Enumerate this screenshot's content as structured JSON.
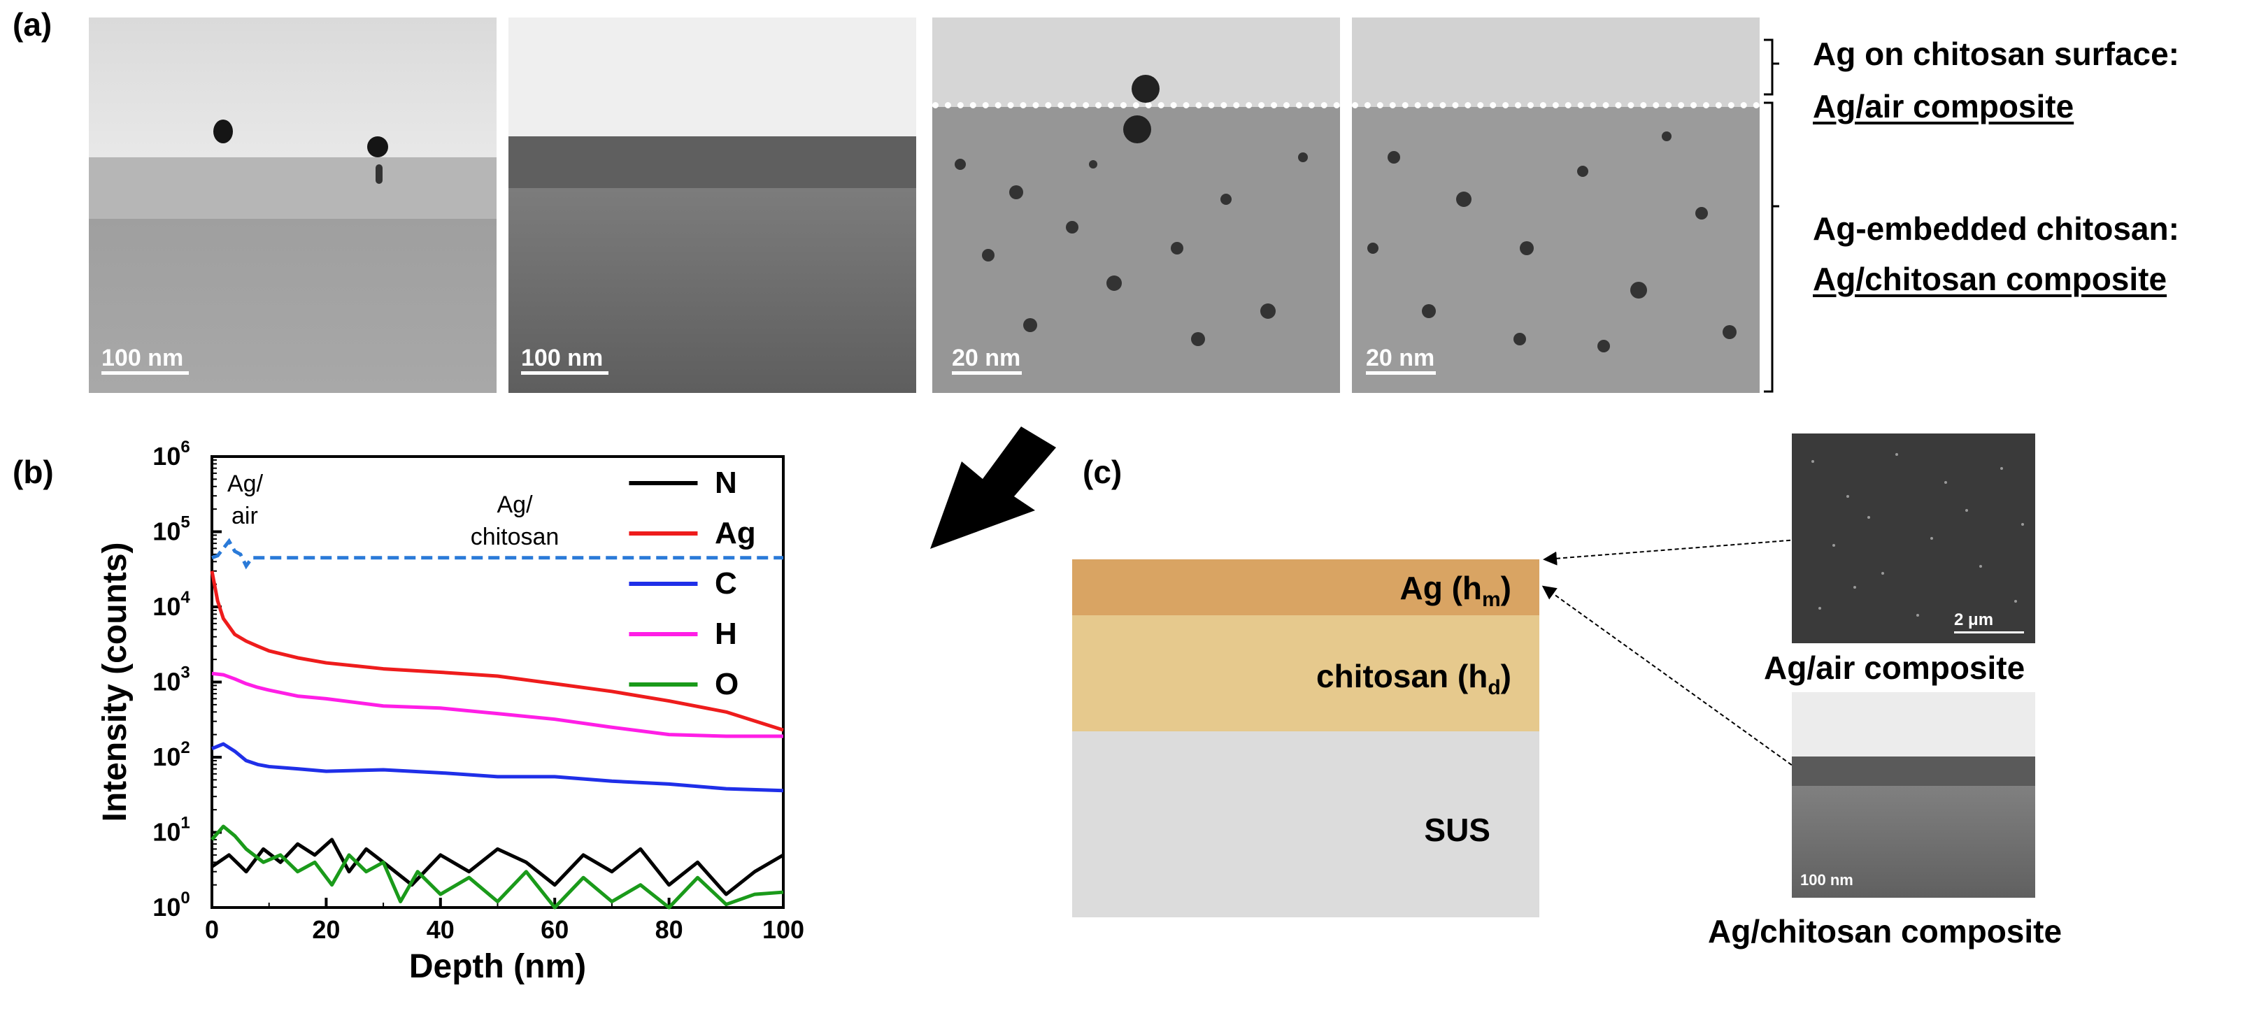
{
  "panels": {
    "a": "(a)",
    "b": "(b)",
    "c": "(c)"
  },
  "tem_images": [
    {
      "scale": "100 nm"
    },
    {
      "scale": "100 nm"
    },
    {
      "scale": "20 nm"
    },
    {
      "scale": "20 nm"
    }
  ],
  "annotations": {
    "top_title": "Ag on chitosan surface:",
    "top_sub": "Ag/air composite",
    "bottom_title": "Ag-embedded chitosan:",
    "bottom_sub": "Ag/chitosan composite"
  },
  "chart_data": {
    "type": "line",
    "xlabel": "Depth (nm)",
    "ylabel": "Intensity (counts)",
    "xlim": [
      0,
      100
    ],
    "ylim_log10": [
      0,
      6
    ],
    "x_ticks": [
      "0",
      "20",
      "40",
      "60",
      "80",
      "100"
    ],
    "region_labels": [
      {
        "line1": "Ag/",
        "line2": "air"
      },
      {
        "line1": "Ag/",
        "line2": "chitosan"
      }
    ],
    "legend": [
      "N",
      "Ag",
      "C",
      "H",
      "O"
    ],
    "colors": {
      "N": "#000000",
      "Ag": "#ee1c1c",
      "C": "#1f2fe8",
      "H": "#ff1ee6",
      "O": "#1a9a1a",
      "boundary": "#2a7ad8"
    },
    "series": [
      {
        "name": "Ag",
        "x": [
          0,
          1,
          2,
          4,
          6,
          8,
          10,
          15,
          20,
          30,
          40,
          50,
          60,
          70,
          80,
          90,
          100
        ],
        "y": [
          30000,
          12000,
          7000,
          4300,
          3500,
          3000,
          2600,
          2100,
          1800,
          1500,
          1350,
          1200,
          950,
          750,
          560,
          400,
          230
        ]
      },
      {
        "name": "H",
        "x": [
          0,
          2,
          4,
          6,
          8,
          10,
          15,
          20,
          30,
          40,
          50,
          60,
          70,
          80,
          90,
          100
        ],
        "y": [
          1300,
          1250,
          1100,
          950,
          850,
          780,
          650,
          600,
          480,
          450,
          380,
          320,
          250,
          200,
          190,
          190
        ]
      },
      {
        "name": "C",
        "x": [
          0,
          2,
          4,
          6,
          8,
          10,
          15,
          20,
          30,
          40,
          50,
          60,
          70,
          80,
          90,
          100
        ],
        "y": [
          130,
          150,
          120,
          90,
          80,
          75,
          70,
          65,
          68,
          62,
          55,
          55,
          48,
          44,
          38,
          36
        ]
      },
      {
        "name": "N",
        "x": [
          0,
          3,
          6,
          9,
          12,
          15,
          18,
          21,
          24,
          27,
          30,
          35,
          40,
          45,
          50,
          55,
          60,
          65,
          70,
          75,
          80,
          85,
          90,
          95,
          100
        ],
        "y": [
          3.5,
          5,
          3,
          6,
          4,
          7,
          5,
          8,
          3,
          6,
          4,
          2,
          5,
          3,
          6,
          4,
          2,
          5,
          3,
          6,
          2,
          4,
          1.5,
          3,
          5
        ]
      },
      {
        "name": "O",
        "x": [
          0,
          2,
          4,
          6,
          9,
          12,
          15,
          18,
          21,
          24,
          27,
          30,
          33,
          36,
          40,
          45,
          50,
          55,
          60,
          65,
          70,
          75,
          80,
          85,
          90,
          95,
          100
        ],
        "y": [
          8,
          12,
          9,
          6,
          4,
          5,
          3,
          4,
          2,
          5,
          3,
          4,
          1.2,
          3,
          1.5,
          2.5,
          1.2,
          3,
          1,
          2.5,
          1.2,
          2,
          1,
          2.5,
          1.1,
          1.5,
          1.6
        ]
      }
    ],
    "boundary": {
      "x": [
        0,
        1,
        2,
        3,
        4,
        5,
        6,
        7,
        100
      ],
      "y": [
        45000,
        48000,
        60000,
        75000,
        55000,
        50000,
        35000,
        45000,
        45000
      ]
    }
  },
  "schematic": {
    "ag_layer": "Ag (h",
    "ag_sub": "m",
    "chitosan_layer": "chitosan (h",
    "chitosan_sub": "d",
    "substrate": "SUS",
    "top_image_caption": "Ag/air composite",
    "top_image_scale": "2 μm",
    "bottom_image_caption": "Ag/chitosan composite",
    "bottom_image_scale": "100 nm",
    "colors": {
      "ag": "#d9a463",
      "chitosan": "#e6c98d",
      "sus": "#dcdcdc"
    }
  }
}
